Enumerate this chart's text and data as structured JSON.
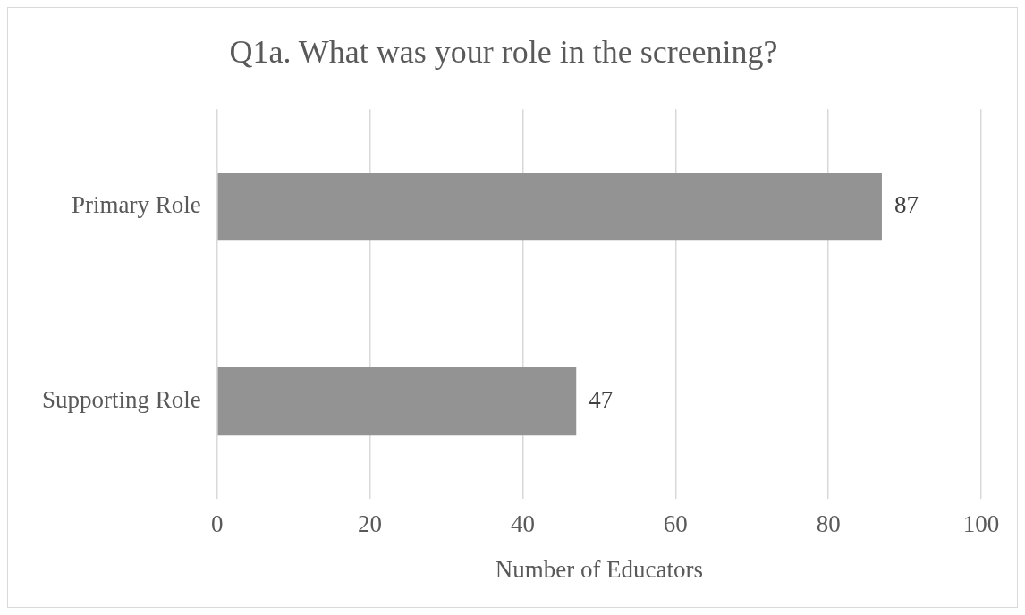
{
  "chart_data": {
    "type": "bar",
    "orientation": "horizontal",
    "title": "Q1a. What was your role in the screening?",
    "xlabel": "Number of Educators",
    "categories": [
      "Primary Role",
      "Supporting Role"
    ],
    "values": [
      87,
      47
    ],
    "color": "#939393",
    "xlim": [
      0,
      100
    ],
    "xticks": [
      0,
      20,
      40,
      60,
      80,
      100
    ],
    "grid": "x",
    "data_labels": true,
    "legend": false
  }
}
